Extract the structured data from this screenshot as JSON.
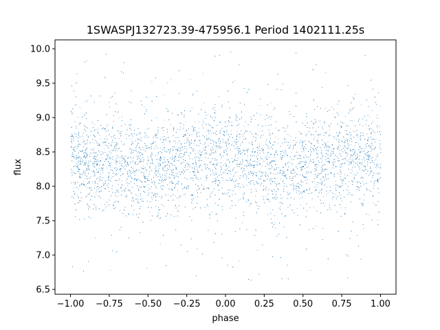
{
  "chart_data": {
    "type": "scatter",
    "title": "1SWASPJ132723.39-475956.1 Period 1402111.25s",
    "xlabel": "phase",
    "ylabel": "flux",
    "xlim": [
      -1.1,
      1.1
    ],
    "ylim": [
      6.43,
      10.13
    ],
    "xticks": [
      -1.0,
      -0.75,
      -0.5,
      -0.25,
      0.0,
      0.25,
      0.5,
      0.75,
      1.0
    ],
    "xtick_labels": [
      "−1.00",
      "−0.75",
      "−0.50",
      "−0.25",
      "0.00",
      "0.25",
      "0.50",
      "0.75",
      "1.00"
    ],
    "yticks": [
      6.5,
      7.0,
      7.5,
      8.0,
      8.5,
      9.0,
      9.5,
      10.0
    ],
    "ytick_labels": [
      "6.5",
      "7.0",
      "7.5",
      "8.0",
      "8.5",
      "9.0",
      "9.5",
      "10.0"
    ],
    "grid": false,
    "marker_color": "#1f77b4",
    "x_range": [
      -1.0,
      1.0
    ],
    "flux_center_profile": {
      "phase": [
        -1.0,
        -0.75,
        -0.5,
        -0.25,
        0.0,
        0.25,
        0.5,
        0.75,
        1.0
      ],
      "median_flux": [
        8.4,
        8.35,
        8.25,
        8.4,
        8.45,
        8.35,
        8.25,
        8.4,
        8.45
      ]
    },
    "flux_core_range": [
      7.8,
      8.9
    ],
    "flux_outlier_range": [
      6.6,
      10.0
    ]
  }
}
